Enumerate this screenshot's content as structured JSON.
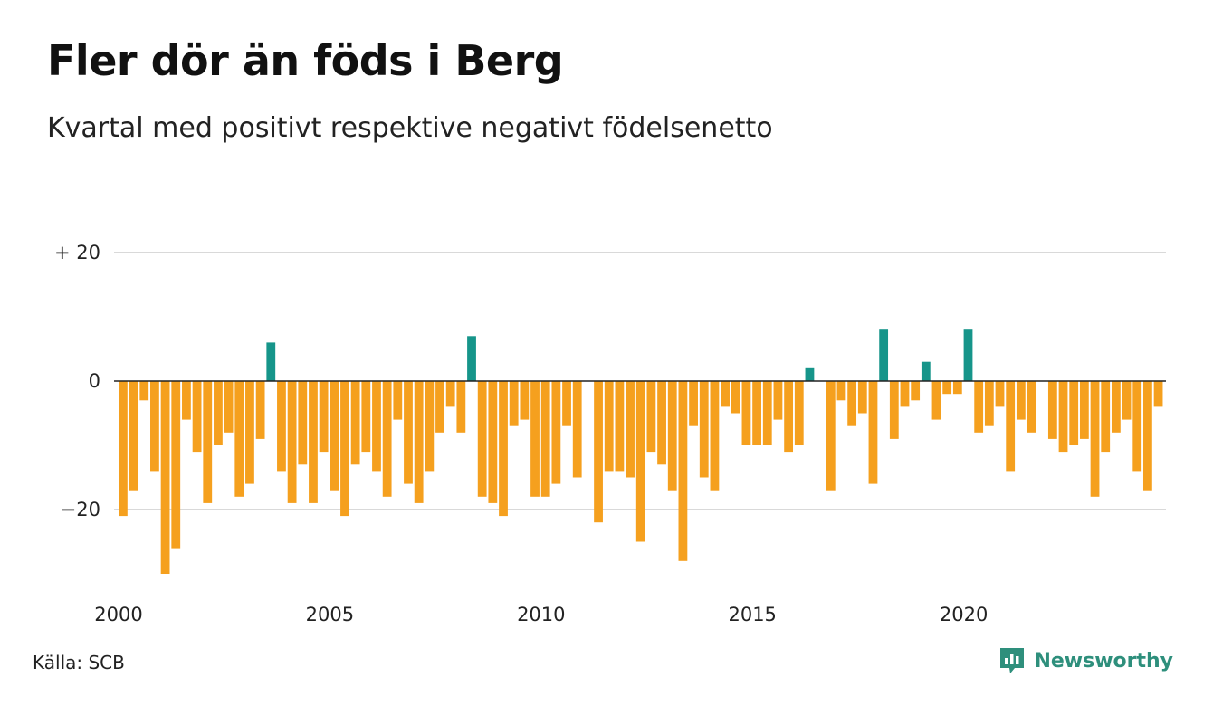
{
  "title": "Fler dör än föds i Berg",
  "subtitle": "Kvartal med positivt respektive negativt födelsenetto",
  "source": "Källa: SCB",
  "brand": "Newsworthy",
  "colors": {
    "positive": "#16958a",
    "negative": "#f5a01e",
    "grid": "#d9d9d9",
    "zero_line": "#222222",
    "brand": "#2e8f7c"
  },
  "chart_data": {
    "type": "bar",
    "x_start": 2000,
    "period": "quarter",
    "ylim": [
      -30,
      20
    ],
    "y_ticks": [
      {
        "value": 20,
        "label": "+ 20"
      },
      {
        "value": 0,
        "label": "0"
      },
      {
        "value": -20,
        "label": "−20"
      }
    ],
    "x_ticks": [
      {
        "value": 2000,
        "label": "2000"
      },
      {
        "value": 2005,
        "label": "2005"
      },
      {
        "value": 2010,
        "label": "2010"
      },
      {
        "value": 2015,
        "label": "2015"
      },
      {
        "value": 2020,
        "label": "2020"
      }
    ],
    "grid": true,
    "values": [
      -21,
      -17,
      -3,
      -14,
      -30,
      -26,
      -6,
      -11,
      -19,
      -10,
      -8,
      -18,
      -16,
      -9,
      6,
      -14,
      -19,
      -13,
      -19,
      -11,
      -17,
      -21,
      -13,
      -11,
      -14,
      -18,
      -6,
      -16,
      -19,
      -14,
      -8,
      -4,
      -8,
      7,
      -18,
      -19,
      -21,
      -7,
      -6,
      -18,
      -18,
      -16,
      -7,
      -15,
      0,
      -22,
      -14,
      -14,
      -15,
      -25,
      -11,
      -13,
      -17,
      -28,
      -7,
      -15,
      -17,
      -4,
      -5,
      -10,
      -10,
      -10,
      -6,
      -11,
      -10,
      2,
      0,
      -17,
      -3,
      -7,
      -5,
      -16,
      8,
      -9,
      -4,
      -3,
      3,
      -6,
      -2,
      -2,
      8,
      -8,
      -7,
      -4,
      -14,
      -6,
      -8,
      0,
      -9,
      -11,
      -10,
      -9,
      -18,
      -11,
      -8,
      -6,
      -14,
      -17,
      -4
    ]
  }
}
